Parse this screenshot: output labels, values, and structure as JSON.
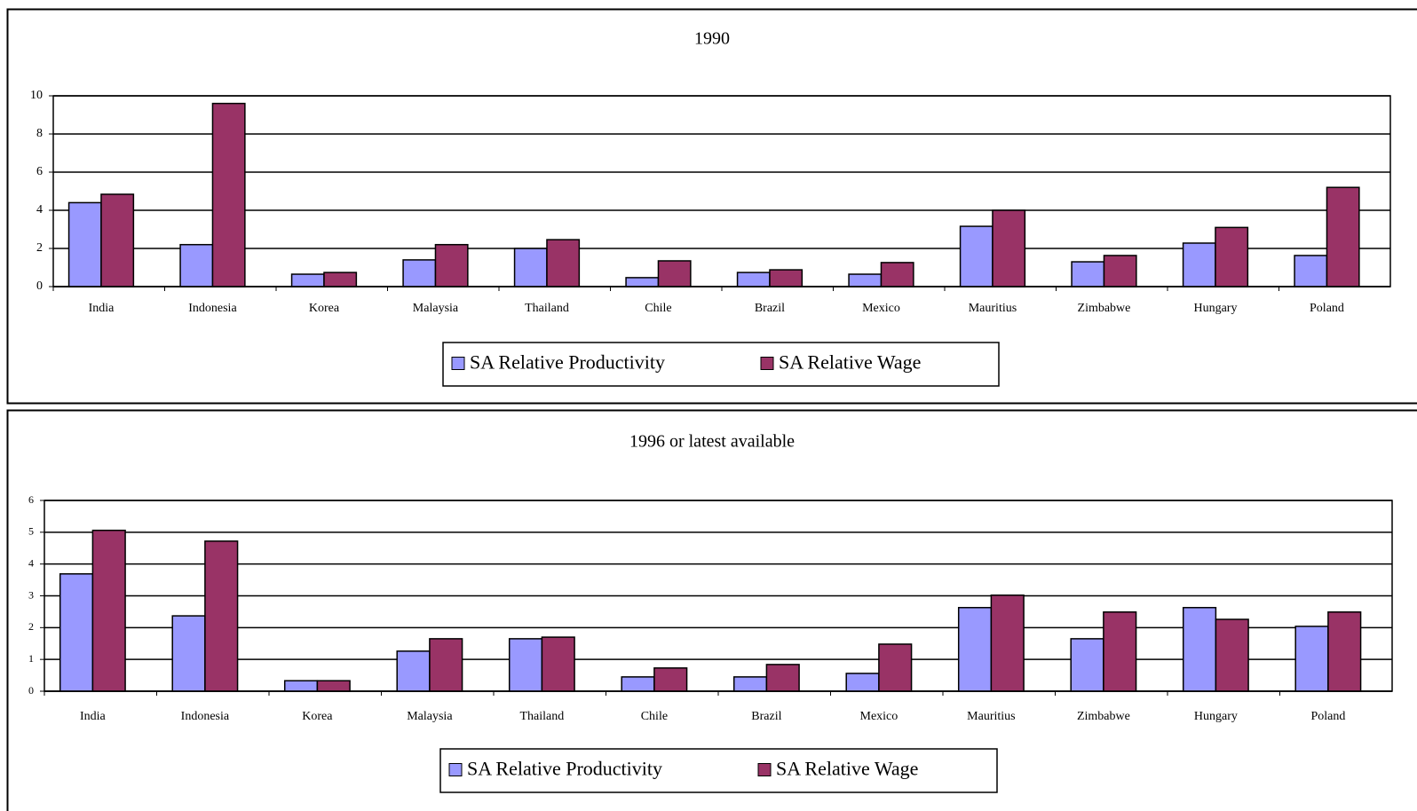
{
  "chart_data": [
    {
      "type": "bar",
      "title": "1990",
      "categories": [
        "India",
        "Indonesia",
        "Korea",
        "Malaysia",
        "Thailand",
        "Chile",
        "Brazil",
        "Mexico",
        "Mauritius",
        "Zimbabwe",
        "Hungary",
        "Poland"
      ],
      "series": [
        {
          "name": "SA Relative Productivity",
          "color": "#9999ff",
          "values": [
            4.4,
            2.2,
            0.65,
            1.4,
            2.0,
            0.47,
            0.74,
            0.65,
            3.16,
            1.3,
            2.28,
            1.63
          ]
        },
        {
          "name": "SA Relative Wage",
          "color": "#993366",
          "values": [
            4.84,
            9.6,
            0.74,
            2.2,
            2.46,
            1.35,
            0.88,
            1.26,
            4.0,
            1.63,
            3.1,
            5.2
          ]
        }
      ],
      "ylim": [
        0,
        10
      ],
      "yticks": [
        0,
        2,
        4,
        6,
        8,
        10
      ],
      "grid": true,
      "legend": "bottom"
    },
    {
      "type": "bar",
      "title": "1996 or latest available",
      "categories": [
        "India",
        "Indonesia",
        "Korea",
        "Malaysia",
        "Thailand",
        "Chile",
        "Brazil",
        "Mexico",
        "Mauritius",
        "Zimbabwe",
        "Hungary",
        "Poland"
      ],
      "series": [
        {
          "name": "SA Relative Productivity",
          "color": "#9999ff",
          "values": [
            3.69,
            2.37,
            0.33,
            1.26,
            1.65,
            0.45,
            0.45,
            0.56,
            2.63,
            1.65,
            2.63,
            2.04
          ]
        },
        {
          "name": "SA Relative Wage",
          "color": "#993366",
          "values": [
            5.06,
            4.72,
            0.33,
            1.65,
            1.7,
            0.73,
            0.84,
            1.48,
            3.02,
            2.49,
            2.26,
            2.49
          ]
        }
      ],
      "ylim": [
        0,
        6
      ],
      "yticks": [
        0,
        1,
        2,
        3,
        4,
        5,
        6
      ],
      "grid": true,
      "legend": "bottom"
    }
  ]
}
